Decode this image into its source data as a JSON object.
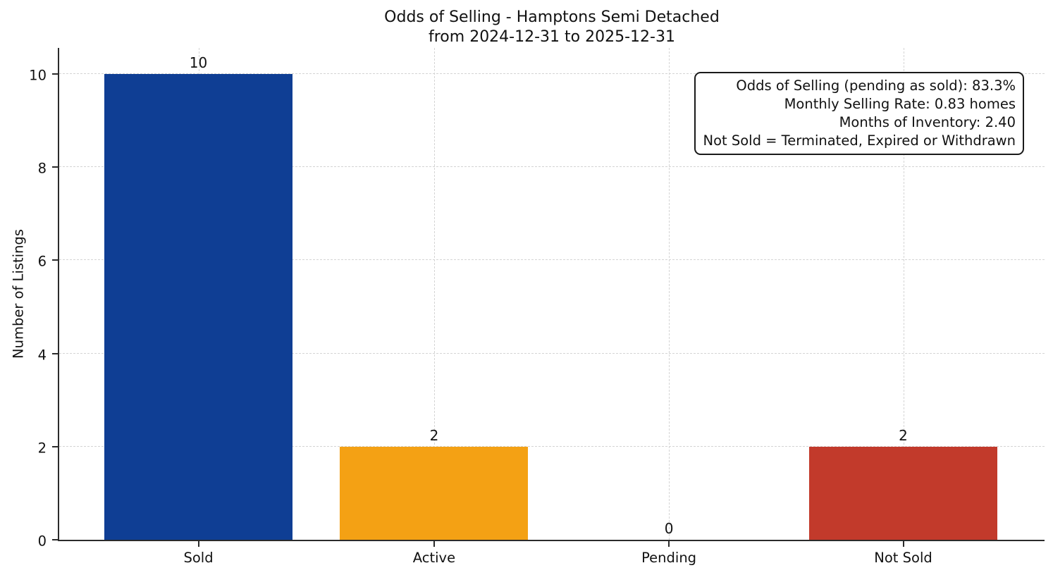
{
  "chart_data": {
    "type": "bar",
    "title": "Odds of Selling - Hamptons Semi Detached\nfrom 2024-12-31 to 2025-12-31",
    "title_lines": [
      "Odds of Selling - Hamptons Semi Detached",
      "from 2024-12-31 to 2025-12-31"
    ],
    "categories": [
      "Sold",
      "Active",
      "Pending",
      "Not Sold"
    ],
    "values": [
      10,
      2,
      0,
      2
    ],
    "bar_colors": [
      "#0f3e94",
      "#f4a114",
      null,
      "#c23a2b"
    ],
    "xlabel": "",
    "ylabel": "Number of Listings",
    "yticks": [
      0,
      2,
      4,
      6,
      8,
      10
    ],
    "ylim": [
      0,
      10.56
    ],
    "grid": {
      "style": "dashed",
      "color": "#d4d4d4",
      "axes": "both"
    },
    "annotation_lines": [
      "Odds of Selling (pending as sold): 83.3%",
      "Monthly Selling Rate: 0.83 homes",
      "Months of Inventory: 2.40",
      "Not Sold = Terminated, Expired or Withdrawn"
    ],
    "colors": {
      "spine": "#2b2b2b",
      "text": "#111111",
      "background": "#ffffff"
    }
  }
}
